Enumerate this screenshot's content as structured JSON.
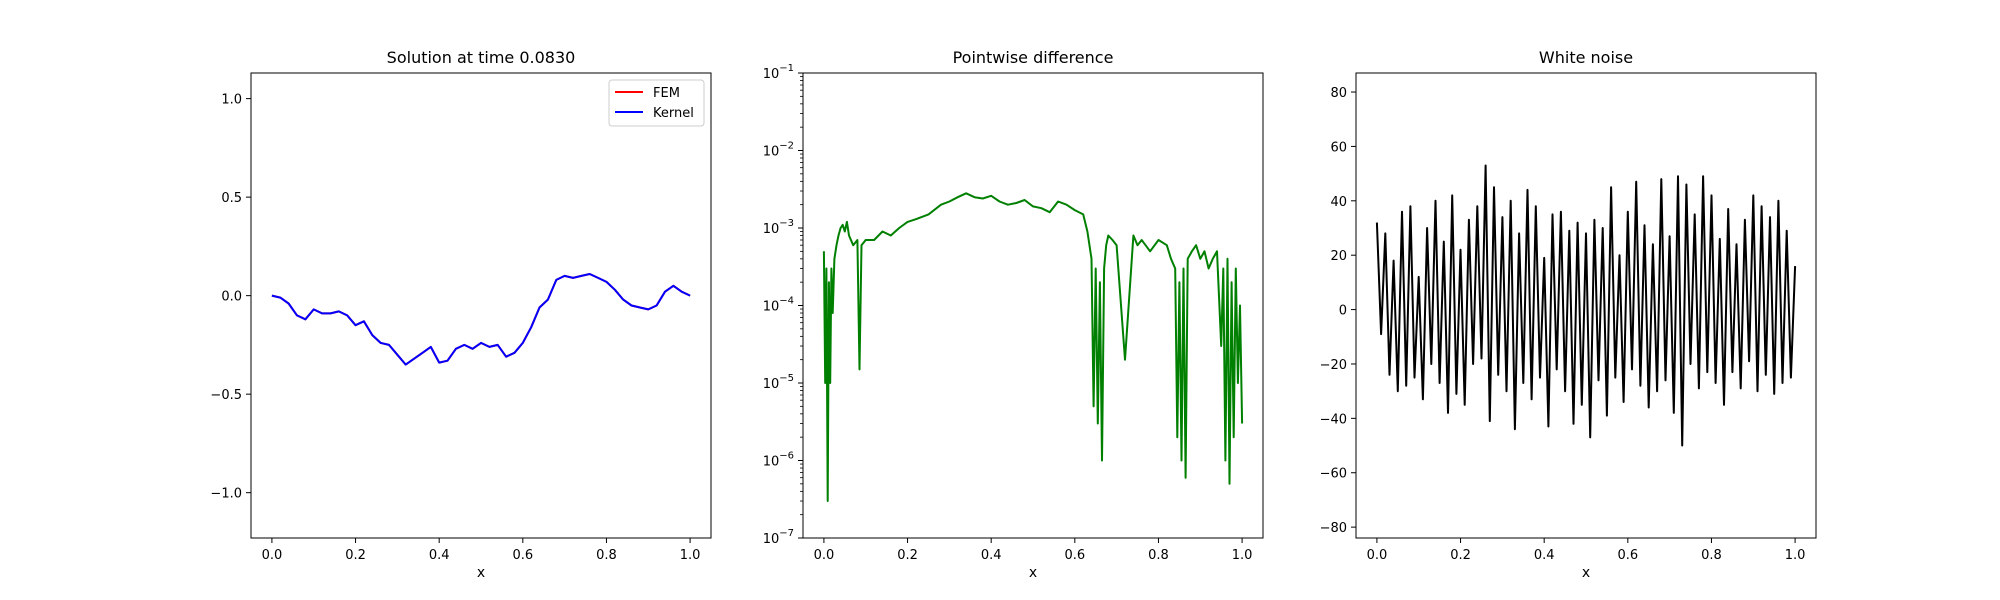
{
  "chart_data": [
    {
      "type": "line",
      "title": "Solution at time 0.0830",
      "xlabel": "x",
      "ylabel": "",
      "xlim": [
        -0.05,
        1.05
      ],
      "ylim": [
        -1.23,
        1.13
      ],
      "xticks": [
        0.0,
        0.2,
        0.4,
        0.6,
        0.8,
        1.0
      ],
      "xtick_labels": [
        "0.0",
        "0.2",
        "0.4",
        "0.6",
        "0.8",
        "1.0"
      ],
      "yticks": [
        -1.0,
        -0.5,
        0.0,
        0.5,
        1.0
      ],
      "ytick_labels": [
        "−1.0",
        "−0.5",
        "0.0",
        "0.5",
        "1.0"
      ],
      "legend": {
        "placement": "top-right",
        "entries": [
          "FEM",
          "Kernel"
        ]
      },
      "series": [
        {
          "name": "FEM",
          "color": "#ff0000",
          "x": [
            0.0,
            0.02,
            0.04,
            0.06,
            0.08,
            0.1,
            0.12,
            0.14,
            0.16,
            0.18,
            0.2,
            0.22,
            0.24,
            0.26,
            0.28,
            0.3,
            0.32,
            0.34,
            0.36,
            0.38,
            0.4,
            0.42,
            0.44,
            0.46,
            0.48,
            0.5,
            0.52,
            0.54,
            0.56,
            0.58,
            0.6,
            0.62,
            0.64,
            0.66,
            0.68,
            0.7,
            0.72,
            0.74,
            0.76,
            0.78,
            0.8,
            0.82,
            0.84,
            0.86,
            0.88,
            0.9,
            0.92,
            0.94,
            0.96,
            0.98,
            1.0
          ],
          "y": [
            0.0,
            -0.01,
            -0.04,
            -0.1,
            -0.12,
            -0.07,
            -0.09,
            -0.09,
            -0.08,
            -0.1,
            -0.15,
            -0.13,
            -0.2,
            -0.24,
            -0.25,
            -0.3,
            -0.35,
            -0.32,
            -0.29,
            -0.26,
            -0.34,
            -0.33,
            -0.27,
            -0.25,
            -0.27,
            -0.24,
            -0.26,
            -0.25,
            -0.31,
            -0.29,
            -0.24,
            -0.16,
            -0.06,
            -0.02,
            0.08,
            0.1,
            0.09,
            0.1,
            0.11,
            0.09,
            0.07,
            0.03,
            -0.02,
            -0.05,
            -0.06,
            -0.07,
            -0.05,
            0.02,
            0.05,
            0.02,
            0.0
          ]
        },
        {
          "name": "Kernel",
          "color": "#0000ff",
          "x": [
            0.0,
            0.02,
            0.04,
            0.06,
            0.08,
            0.1,
            0.12,
            0.14,
            0.16,
            0.18,
            0.2,
            0.22,
            0.24,
            0.26,
            0.28,
            0.3,
            0.32,
            0.34,
            0.36,
            0.38,
            0.4,
            0.42,
            0.44,
            0.46,
            0.48,
            0.5,
            0.52,
            0.54,
            0.56,
            0.58,
            0.6,
            0.62,
            0.64,
            0.66,
            0.68,
            0.7,
            0.72,
            0.74,
            0.76,
            0.78,
            0.8,
            0.82,
            0.84,
            0.86,
            0.88,
            0.9,
            0.92,
            0.94,
            0.96,
            0.98,
            1.0
          ],
          "y": [
            0.0,
            -0.01,
            -0.04,
            -0.1,
            -0.12,
            -0.07,
            -0.09,
            -0.09,
            -0.08,
            -0.1,
            -0.15,
            -0.13,
            -0.2,
            -0.24,
            -0.25,
            -0.3,
            -0.35,
            -0.32,
            -0.29,
            -0.26,
            -0.34,
            -0.33,
            -0.27,
            -0.25,
            -0.27,
            -0.24,
            -0.26,
            -0.25,
            -0.31,
            -0.29,
            -0.24,
            -0.16,
            -0.06,
            -0.02,
            0.08,
            0.1,
            0.09,
            0.1,
            0.11,
            0.09,
            0.07,
            0.03,
            -0.02,
            -0.05,
            -0.06,
            -0.07,
            -0.05,
            0.02,
            0.05,
            0.02,
            0.0
          ]
        }
      ]
    },
    {
      "type": "line",
      "title": "Pointwise difference",
      "xlabel": "x",
      "ylabel": "",
      "yscale": "log",
      "xlim": [
        -0.05,
        1.05
      ],
      "ylim": [
        1e-07,
        0.1
      ],
      "xticks": [
        0.0,
        0.2,
        0.4,
        0.6,
        0.8,
        1.0
      ],
      "xtick_labels": [
        "0.0",
        "0.2",
        "0.4",
        "0.6",
        "0.8",
        "1.0"
      ],
      "yticks": [
        1e-07,
        1e-06,
        1e-05,
        0.0001,
        0.001,
        0.01,
        0.1
      ],
      "ytick_labels": [
        {
          "base": "10",
          "exp": "−7"
        },
        {
          "base": "10",
          "exp": "−6"
        },
        {
          "base": "10",
          "exp": "−5"
        },
        {
          "base": "10",
          "exp": "−4"
        },
        {
          "base": "10",
          "exp": "−3"
        },
        {
          "base": "10",
          "exp": "−2"
        },
        {
          "base": "10",
          "exp": "−1"
        }
      ],
      "series": [
        {
          "color": "#008000",
          "x": [
            0.0,
            0.003,
            0.006,
            0.009,
            0.012,
            0.015,
            0.018,
            0.021,
            0.025,
            0.03,
            0.035,
            0.04,
            0.045,
            0.05,
            0.055,
            0.06,
            0.07,
            0.08,
            0.085,
            0.09,
            0.1,
            0.12,
            0.14,
            0.16,
            0.18,
            0.2,
            0.22,
            0.25,
            0.28,
            0.3,
            0.32,
            0.34,
            0.36,
            0.38,
            0.4,
            0.42,
            0.44,
            0.46,
            0.48,
            0.5,
            0.52,
            0.54,
            0.56,
            0.58,
            0.6,
            0.62,
            0.63,
            0.64,
            0.645,
            0.65,
            0.655,
            0.66,
            0.665,
            0.67,
            0.675,
            0.68,
            0.69,
            0.7,
            0.72,
            0.74,
            0.75,
            0.76,
            0.78,
            0.8,
            0.82,
            0.83,
            0.84,
            0.845,
            0.85,
            0.855,
            0.86,
            0.865,
            0.87,
            0.88,
            0.89,
            0.9,
            0.91,
            0.92,
            0.93,
            0.94,
            0.95,
            0.955,
            0.96,
            0.965,
            0.97,
            0.975,
            0.98,
            0.985,
            0.99,
            0.995,
            1.0
          ],
          "y": [
            0.0005,
            1e-05,
            0.0003,
            3e-07,
            0.0002,
            1e-05,
            0.0003,
            8e-05,
            0.0004,
            0.0006,
            0.0008,
            0.001,
            0.0011,
            0.0009,
            0.0012,
            0.0008,
            0.0006,
            0.0007,
            1.5e-05,
            0.0006,
            0.0007,
            0.0007,
            0.0009,
            0.0008,
            0.001,
            0.0012,
            0.0013,
            0.0015,
            0.002,
            0.0022,
            0.0025,
            0.0028,
            0.0025,
            0.0024,
            0.0026,
            0.0022,
            0.002,
            0.0021,
            0.0023,
            0.0019,
            0.0018,
            0.0016,
            0.0022,
            0.002,
            0.0017,
            0.0015,
            0.0009,
            0.0004,
            5e-06,
            0.0003,
            3e-06,
            0.0002,
            1e-06,
            0.0003,
            0.0006,
            0.0008,
            0.0007,
            0.0006,
            2e-05,
            0.0008,
            0.0006,
            0.0007,
            0.0005,
            0.0007,
            0.0006,
            0.0004,
            0.0003,
            2e-06,
            0.0002,
            1e-06,
            0.0003,
            6e-07,
            0.0004,
            0.0005,
            0.0006,
            0.0004,
            0.0005,
            0.0003,
            0.0004,
            0.0005,
            3e-05,
            0.0003,
            1e-06,
            0.0004,
            5e-07,
            0.0002,
            2e-06,
            0.0003,
            1e-05,
            0.0001,
            3e-06
          ]
        }
      ]
    },
    {
      "type": "line",
      "title": "White noise",
      "xlabel": "x",
      "ylabel": "",
      "xlim": [
        -0.05,
        1.05
      ],
      "ylim": [
        -84,
        87
      ],
      "xticks": [
        0.0,
        0.2,
        0.4,
        0.6,
        0.8,
        1.0
      ],
      "xtick_labels": [
        "0.0",
        "0.2",
        "0.4",
        "0.6",
        "0.8",
        "1.0"
      ],
      "yticks": [
        -80,
        -60,
        -40,
        -20,
        0,
        20,
        40,
        60,
        80
      ],
      "ytick_labels": [
        "−80",
        "−60",
        "−40",
        "−20",
        "0",
        "20",
        "40",
        "60",
        "80"
      ],
      "series": [
        {
          "color": "#000000",
          "x": [
            0.0,
            0.01,
            0.02,
            0.03,
            0.04,
            0.05,
            0.06,
            0.07,
            0.08,
            0.09,
            0.1,
            0.11,
            0.12,
            0.13,
            0.14,
            0.15,
            0.16,
            0.17,
            0.18,
            0.19,
            0.2,
            0.21,
            0.22,
            0.23,
            0.24,
            0.25,
            0.26,
            0.27,
            0.28,
            0.29,
            0.3,
            0.31,
            0.32,
            0.33,
            0.34,
            0.35,
            0.36,
            0.37,
            0.38,
            0.39,
            0.4,
            0.41,
            0.42,
            0.43,
            0.44,
            0.45,
            0.46,
            0.47,
            0.48,
            0.49,
            0.5,
            0.51,
            0.52,
            0.53,
            0.54,
            0.55,
            0.56,
            0.57,
            0.58,
            0.59,
            0.6,
            0.61,
            0.62,
            0.63,
            0.64,
            0.65,
            0.66,
            0.67,
            0.68,
            0.69,
            0.7,
            0.71,
            0.72,
            0.73,
            0.74,
            0.75,
            0.76,
            0.77,
            0.78,
            0.79,
            0.8,
            0.81,
            0.82,
            0.83,
            0.84,
            0.85,
            0.86,
            0.87,
            0.88,
            0.89,
            0.9,
            0.91,
            0.92,
            0.93,
            0.94,
            0.95,
            0.96,
            0.97,
            0.98,
            0.99,
            1.0
          ],
          "y": [
            32,
            -9,
            28,
            -24,
            18,
            -30,
            36,
            -28,
            38,
            -25,
            12,
            -33,
            30,
            -20,
            40,
            -27,
            25,
            -38,
            42,
            -31,
            22,
            -35,
            33,
            -20,
            38,
            -18,
            53,
            -41,
            45,
            -24,
            34,
            -30,
            40,
            -44,
            28,
            -27,
            44,
            -33,
            38,
            -25,
            19,
            -43,
            35,
            -22,
            36,
            -30,
            29,
            -42,
            32,
            -35,
            28,
            -47,
            33,
            -26,
            30,
            -39,
            45,
            -25,
            20,
            -34,
            36,
            -22,
            47,
            -28,
            31,
            -36,
            24,
            -30,
            48,
            -26,
            27,
            -38,
            49,
            -50,
            46,
            -20,
            35,
            -29,
            49,
            -23,
            42,
            -27,
            26,
            -35,
            37,
            -23,
            24,
            -29,
            33,
            -19,
            42,
            -30,
            38,
            -24,
            34,
            -31,
            40,
            -27,
            29,
            -25,
            16
          ]
        }
      ]
    }
  ]
}
